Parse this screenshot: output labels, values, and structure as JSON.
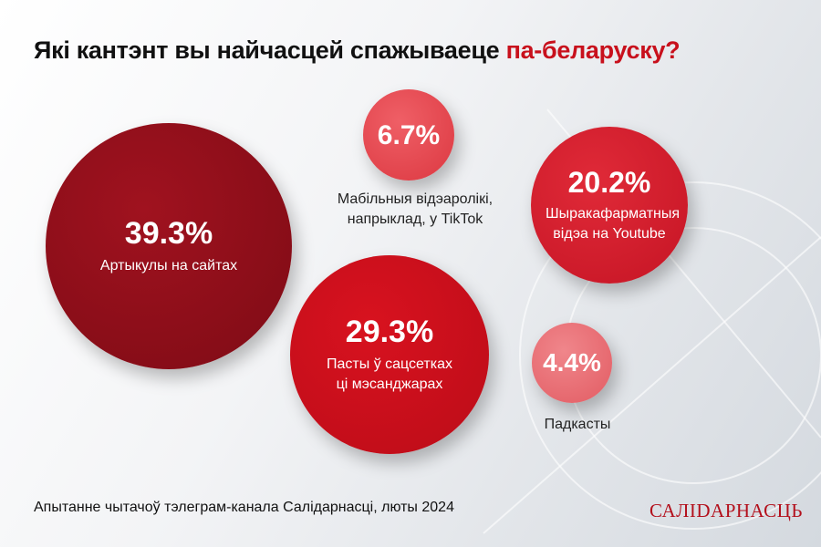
{
  "title": {
    "main": "Які кантэнт вы найчасцей спажываеце ",
    "highlight": "па-беларуску?"
  },
  "chart_data": {
    "type": "bubble",
    "title": "Які кантэнт вы найчасцей спажываеце па-беларуску?",
    "items": [
      {
        "label": "Артыкулы на сайтах",
        "value": 39.3,
        "display": "39.3%",
        "color": "#8c0d18"
      },
      {
        "label": "Мабільныя відэаролікі, напрыклад, у TikTok",
        "value": 6.7,
        "display": "6.7%",
        "color": "#e5474f"
      },
      {
        "label": "Шыракафарматныя відэа на Youtube",
        "value": 20.2,
        "display": "20.2%",
        "color": "#d21d2c"
      },
      {
        "label": "Пасты ў сацсетках ці мэсанджарах",
        "value": 29.3,
        "display": "29.3%",
        "color": "#c60f1c"
      },
      {
        "label": "Падкасты",
        "value": 4.4,
        "display": "4.4%",
        "color": "#ea6c72"
      }
    ]
  },
  "footer": "Апытанне чытачоў тэлеграм-канала Салідарнасці, люты 2024",
  "logo": "САЛІDАРНАСЦЬ"
}
